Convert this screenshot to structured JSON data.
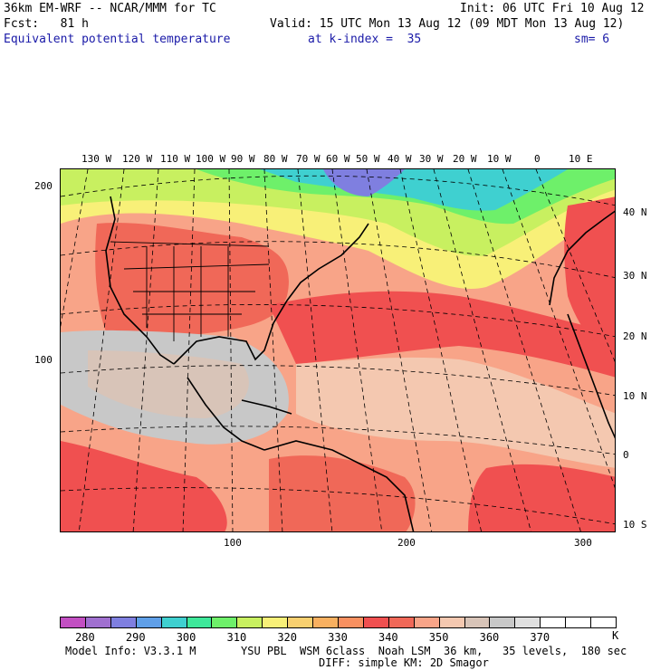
{
  "header": {
    "model_line": "36km EM-WRF -- NCAR/MMM for TC",
    "init_line": "Init: 06 UTC Fri 10 Aug 12",
    "fcst_line": "Fcst:   81 h",
    "valid_line": "Valid: 15 UTC Mon 13 Aug 12 (09 MDT Mon 13 Aug 12)",
    "field_name": "Equivalent potential temperature",
    "level": "at k-index =  35",
    "smoothing": "sm= 6"
  },
  "map": {
    "lon_labels": [
      "130 W",
      "120 W",
      "110 W",
      "100 W",
      "90 W",
      "80 W",
      "70 W",
      "60 W",
      "50 W",
      "40 W",
      "30 W",
      "20 W",
      "10 W",
      "0",
      "10 E"
    ],
    "lat_labels": [
      "40 N",
      "30 N",
      "20 N",
      "10 N",
      "0",
      "10 S"
    ],
    "grid_y_labels": [
      "200",
      "100"
    ],
    "grid_x_labels": [
      "100",
      "200",
      "300"
    ]
  },
  "colorbar": {
    "unit": "K",
    "colors": [
      "#c24fc2",
      "#a070d0",
      "#7f7fe0",
      "#5f9fe8",
      "#3fd0d0",
      "#3ee89a",
      "#6ef06a",
      "#c8f060",
      "#f8f078",
      "#f8d070",
      "#f8b060",
      "#f89060",
      "#f05050",
      "#f06858",
      "#f8a488",
      "#f4c8b0",
      "#d8c4b8",
      "#c8c8c8",
      "#e0e0e0",
      "#ffffff",
      "#ffffff",
      "#ffffff"
    ],
    "labels": [
      "280",
      "290",
      "300",
      "310",
      "320",
      "330",
      "340",
      "350",
      "360",
      "370"
    ]
  },
  "footer": {
    "model_info": "Model Info: V3.3.1 M",
    "physics": "YSU PBL  WSM 6class  Noah LSM  36 km,   35 levels,  180 sec",
    "diffusion": "DIFF: simple KM: 2D Smagor"
  }
}
